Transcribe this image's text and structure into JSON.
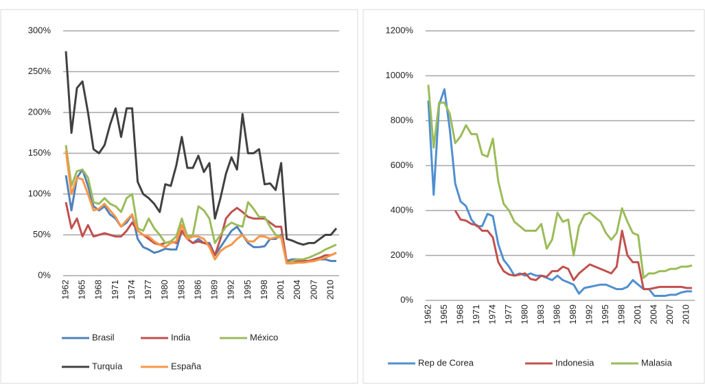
{
  "chart_data": [
    {
      "type": "line",
      "categories": [
        "1962",
        null,
        null,
        "1965",
        null,
        null,
        "1968",
        null,
        null,
        "1971",
        null,
        null,
        "1974",
        null,
        null,
        "1977",
        null,
        null,
        "1980",
        null,
        null,
        "1983",
        null,
        null,
        "1986",
        null,
        null,
        "1989",
        null,
        null,
        "1992",
        null,
        null,
        "1995",
        null,
        null,
        "1998",
        null,
        null,
        "2001",
        null,
        null,
        "2004",
        null,
        null,
        "2007",
        null,
        null,
        "2010",
        null
      ],
      "ylim": [
        0,
        300
      ],
      "yticks": [
        {
          "value": 0,
          "label": "0%"
        },
        {
          "value": 50,
          "label": "50%"
        },
        {
          "value": 100,
          "label": "100%"
        },
        {
          "value": 150,
          "label": "150%"
        },
        {
          "value": 200,
          "label": "200%"
        },
        {
          "value": 250,
          "label": "250%"
        },
        {
          "value": 300,
          "label": "300%"
        }
      ],
      "grid": true,
      "legend": "bottom",
      "series": [
        {
          "name": "Brasil",
          "color": "#4f81bd",
          "values": [
            123,
            80,
            120,
            130,
            110,
            85,
            80,
            85,
            75,
            70,
            60,
            65,
            75,
            45,
            35,
            32,
            28,
            30,
            33,
            32,
            32,
            55,
            45,
            40,
            45,
            40,
            40,
            25,
            35,
            45,
            55,
            60,
            50,
            40,
            35,
            35,
            36,
            45,
            45,
            50,
            18,
            20,
            20,
            18,
            18,
            18,
            20,
            20,
            18,
            18
          ]
        },
        {
          "name": "India",
          "color": "#c0504d",
          "values": [
            90,
            58,
            70,
            48,
            62,
            48,
            50,
            52,
            50,
            48,
            48,
            55,
            65,
            55,
            50,
            45,
            40,
            38,
            40,
            42,
            40,
            55,
            45,
            40,
            42,
            40,
            38,
            25,
            45,
            70,
            78,
            83,
            78,
            72,
            70,
            70,
            70,
            65,
            60,
            60,
            17,
            18,
            18,
            18,
            18,
            20,
            22,
            25,
            25,
            28
          ]
        },
        {
          "name": "México",
          "color": "#9bbb59",
          "values": [
            160,
            110,
            128,
            130,
            120,
            90,
            88,
            95,
            88,
            85,
            78,
            95,
            100,
            58,
            55,
            70,
            58,
            50,
            40,
            42,
            48,
            70,
            48,
            50,
            85,
            80,
            70,
            40,
            50,
            60,
            65,
            62,
            60,
            90,
            82,
            72,
            72,
            60,
            50,
            48,
            15,
            18,
            20,
            20,
            22,
            25,
            28,
            32,
            35,
            38
          ]
        },
        {
          "name": "Turquía",
          "color": "#404040",
          "values": [
            275,
            175,
            230,
            238,
            200,
            155,
            150,
            160,
            185,
            205,
            170,
            205,
            205,
            115,
            100,
            95,
            88,
            78,
            112,
            110,
            135,
            170,
            132,
            132,
            147,
            127,
            138,
            70,
            95,
            125,
            145,
            130,
            198,
            150,
            150,
            155,
            112,
            113,
            105,
            138,
            45,
            43,
            40,
            38,
            40,
            40,
            45,
            50,
            50,
            58
          ]
        },
        {
          "name": "España",
          "color": "#f79646",
          "values": [
            153,
            100,
            120,
            118,
            100,
            80,
            82,
            88,
            80,
            72,
            60,
            68,
            75,
            55,
            50,
            48,
            42,
            38,
            35,
            40,
            42,
            62,
            45,
            48,
            48,
            45,
            35,
            20,
            30,
            35,
            38,
            45,
            50,
            42,
            42,
            48,
            48,
            45,
            47,
            47,
            15,
            15,
            16,
            16,
            17,
            18,
            20,
            22,
            25,
            28
          ]
        }
      ]
    },
    {
      "type": "line",
      "categories": [
        "1962",
        null,
        null,
        "1965",
        null,
        null,
        "1968",
        null,
        null,
        "1971",
        null,
        null,
        "1974",
        null,
        null,
        "1977",
        null,
        null,
        "1980",
        null,
        null,
        "1983",
        null,
        null,
        "1986",
        null,
        null,
        "1989",
        null,
        null,
        "1992",
        null,
        null,
        "1995",
        null,
        null,
        "1998",
        null,
        null,
        "2001",
        null,
        null,
        "2004",
        null,
        null,
        "2007",
        null,
        null,
        "2010",
        null
      ],
      "ylim": [
        0,
        1200
      ],
      "yticks": [
        {
          "value": 0,
          "label": "0%"
        },
        {
          "value": 200,
          "label": "200%"
        },
        {
          "value": 400,
          "label": "400%"
        },
        {
          "value": 600,
          "label": "600%"
        },
        {
          "value": 800,
          "label": "800%"
        },
        {
          "value": 1000,
          "label": "1000%"
        },
        {
          "value": 1200,
          "label": "1200%"
        }
      ],
      "grid": true,
      "legend": "bottom",
      "series": [
        {
          "name": "Rep de Corea",
          "color": "#4f8fd0",
          "values": [
            890,
            470,
            870,
            940,
            760,
            520,
            440,
            420,
            360,
            330,
            330,
            385,
            375,
            250,
            180,
            150,
            110,
            120,
            110,
            120,
            110,
            110,
            100,
            90,
            110,
            90,
            80,
            70,
            30,
            55,
            60,
            65,
            70,
            70,
            60,
            50,
            50,
            60,
            90,
            70,
            50,
            50,
            20,
            20,
            20,
            25,
            25,
            35,
            40,
            40
          ]
        },
        {
          "name": "Indonesia",
          "color": "#c0504d",
          "values": [
            null,
            null,
            null,
            null,
            null,
            400,
            360,
            355,
            340,
            335,
            310,
            310,
            280,
            170,
            130,
            115,
            110,
            115,
            120,
            95,
            90,
            110,
            105,
            130,
            130,
            150,
            140,
            90,
            120,
            140,
            160,
            150,
            140,
            130,
            120,
            150,
            310,
            200,
            170,
            170,
            50,
            50,
            55,
            60,
            60,
            60,
            60,
            60,
            55,
            55
          ]
        },
        {
          "name": "Malasia",
          "color": "#9bbb59",
          "values": [
            960,
            680,
            880,
            880,
            830,
            700,
            730,
            780,
            740,
            740,
            650,
            640,
            720,
            530,
            430,
            400,
            350,
            330,
            310,
            310,
            310,
            340,
            230,
            270,
            390,
            350,
            360,
            200,
            330,
            380,
            390,
            370,
            350,
            300,
            270,
            300,
            410,
            350,
            300,
            290,
            100,
            120,
            120,
            130,
            130,
            140,
            140,
            150,
            150,
            155
          ]
        }
      ]
    }
  ]
}
